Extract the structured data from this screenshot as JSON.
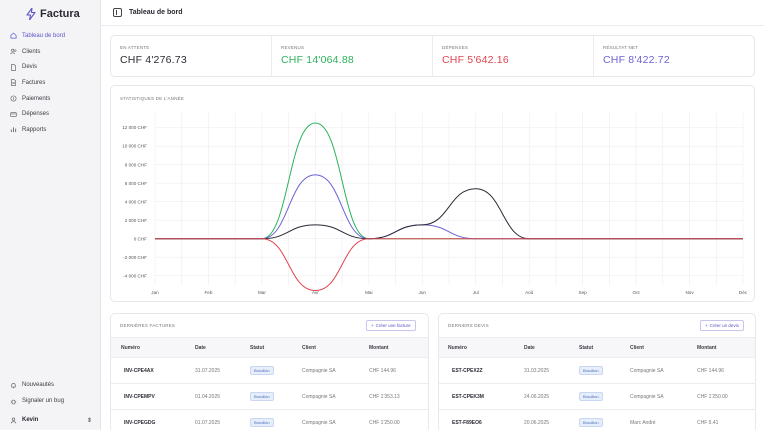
{
  "brand": {
    "name": "Factura",
    "accent": "#5b55c8"
  },
  "sidebar": {
    "items": [
      {
        "label": "Tableau de bord",
        "icon": "home-icon",
        "active": true
      },
      {
        "label": "Clients",
        "icon": "users-icon"
      },
      {
        "label": "Devis",
        "icon": "file-icon"
      },
      {
        "label": "Factures",
        "icon": "document-icon"
      },
      {
        "label": "Paiements",
        "icon": "payment-icon"
      },
      {
        "label": "Dépenses",
        "icon": "wallet-icon"
      },
      {
        "label": "Rapports",
        "icon": "bar-chart-icon"
      }
    ],
    "bottom": [
      {
        "label": "Nouveautés",
        "icon": "bell-icon"
      },
      {
        "label": "Signaler un bug",
        "icon": "bug-icon"
      }
    ],
    "user": {
      "name": "Kevin",
      "icon": "user-icon"
    }
  },
  "header": {
    "title": "Tableau de bord"
  },
  "stats": [
    {
      "label": "EN ATTENTE",
      "value": "CHF 4'276.73",
      "color": "#2a2a33"
    },
    {
      "label": "REVENUS",
      "value": "CHF 14'064.88",
      "color": "#2bb35a"
    },
    {
      "label": "DÉPENSES",
      "value": "CHF 5'642.16",
      "color": "#e0444e"
    },
    {
      "label": "RÉSULTAT NET",
      "value": "CHF 8'422.72",
      "color": "#6b63d6"
    }
  ],
  "chart_data": {
    "type": "line",
    "title": "STATISTIQUES DE L'ANNÉE",
    "categories": [
      "Jan",
      "Feb",
      "Mar",
      "Avr",
      "Mai",
      "Jun",
      "Jul",
      "Aoû",
      "Sep",
      "Oct",
      "Nov",
      "Déc"
    ],
    "y_ticks": [
      "12 000 CHF",
      "10 000 CHF",
      "8 000 CHF",
      "6 000 CHF",
      "4 000 CHF",
      "2 000 CHF",
      "0 CHF",
      "-2 000 CHF",
      "-4 000 CHF"
    ],
    "ylim": [
      -5000,
      12500
    ],
    "grid": true,
    "series": [
      {
        "color": "#2bb35a",
        "values": [
          0,
          0,
          0,
          12500,
          0,
          0,
          0,
          0,
          0,
          0,
          0,
          0
        ]
      },
      {
        "color": "#6b63d6",
        "values": [
          0,
          0,
          0,
          6900,
          0,
          1500,
          0,
          0,
          0,
          0,
          0,
          0
        ]
      },
      {
        "color": "#2a2a33",
        "values": [
          0,
          0,
          0,
          1500,
          0,
          1500,
          5400,
          0,
          0,
          0,
          0,
          0
        ]
      },
      {
        "color": "#e0444e",
        "values": [
          0,
          0,
          0,
          -5600,
          0,
          0,
          0,
          0,
          0,
          0,
          0,
          0
        ]
      }
    ]
  },
  "invoices": {
    "title": "DERNIÈRES FACTURES",
    "create_label": "Créer une facture",
    "columns": [
      "Numéro",
      "Date",
      "Statut",
      "Client",
      "Montant"
    ],
    "rows": [
      {
        "number": "INV-CPE4AX",
        "date": "31.07.2025",
        "status": "Brouillon",
        "client": "Compagnie SA",
        "amount": "CHF 144.96"
      },
      {
        "number": "INV-CPEMPV",
        "date": "01.04.2025",
        "status": "Brouillon",
        "client": "Compagnie SA",
        "amount": "CHF 1'353.13"
      },
      {
        "number": "INV-CPEGDG",
        "date": "01.07.2025",
        "status": "Brouillon",
        "client": "Compagnie SA",
        "amount": "CHF 1'250.00"
      }
    ]
  },
  "quotes": {
    "title": "DERNIERS DEVIS",
    "create_label": "Créer un devis",
    "columns": [
      "Numéro",
      "Date",
      "Statut",
      "Client",
      "Montant"
    ],
    "rows": [
      {
        "number": "EST-CPEX2Z",
        "date": "31.03.2025",
        "status": "Brouillon",
        "client": "Compagnie SA",
        "amount": "CHF 144.96"
      },
      {
        "number": "EST-CPEK3M",
        "date": "24.06.2025",
        "status": "Brouillon",
        "client": "Compagnie SA",
        "amount": "CHF 1'250.00"
      },
      {
        "number": "EST-F89EO6",
        "date": "20.06.2025",
        "status": "Brouillon",
        "client": "Marc André",
        "amount": "CHF 5.41"
      }
    ]
  }
}
